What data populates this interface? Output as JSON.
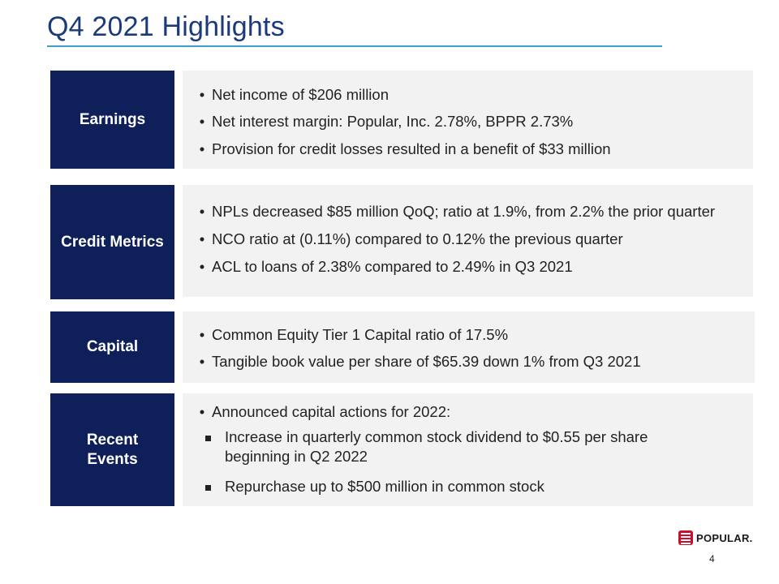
{
  "title": "Q4 2021 Highlights",
  "sections": {
    "earnings": {
      "label": "Earnings",
      "bullets": [
        "Net income of $206 million",
        "Net interest margin: Popular, Inc. 2.78%, BPPR 2.73%",
        "Provision for credit losses resulted in a benefit of $33 million"
      ]
    },
    "credit": {
      "label": "Credit Metrics",
      "bullets": [
        "NPLs decreased $85 million QoQ; ratio at 1.9%, from 2.2% the prior quarter",
        "NCO ratio at (0.11%) compared to 0.12% the previous quarter",
        "ACL to loans of 2.38% compared to 2.49% in Q3 2021"
      ]
    },
    "capital": {
      "label": "Capital",
      "bullets": [
        "Common Equity Tier 1 Capital ratio of 17.5%",
        "Tangible book value per share of $65.39 down 1% from Q3 2021"
      ]
    },
    "events": {
      "label_line1": "Recent",
      "label_line2": "Events",
      "bullets": [
        "Announced capital actions for 2022:"
      ],
      "sub_bullets": [
        "Increase in quarterly common stock dividend to $0.55 per share",
        "beginning in Q2 2022",
        "Repurchase up to $500 million in common stock"
      ]
    }
  },
  "footer": {
    "logo_text": "POPULAR.",
    "page_number": "4"
  },
  "colors": {
    "title": "#1a3a7a",
    "rule": "#3aa0c8",
    "label_bg": "#0f1f5a",
    "content_bg": "#f2f2f2",
    "logo_red": "#c8102e"
  }
}
